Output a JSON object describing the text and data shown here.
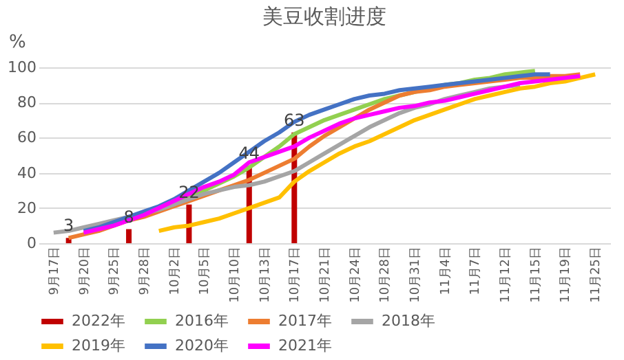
{
  "chart_data": {
    "type": "line",
    "title": "美豆收割进度",
    "ylabel": "%",
    "categories": [
      "9月17日",
      null,
      "9月20日",
      null,
      "9月25日",
      null,
      "9月28日",
      null,
      "10月2日",
      null,
      "10月5日",
      null,
      "10月10日",
      null,
      "10月13日",
      null,
      "10月17日",
      null,
      "10月21日",
      null,
      "10月24日",
      null,
      "10月28日",
      null,
      "10月31日",
      null,
      "11月4日",
      null,
      "11月7日",
      null,
      "11月12日",
      null,
      "11月15日",
      null,
      "11月19日",
      null,
      "11月25日"
    ],
    "series": [
      {
        "name": "2022年",
        "type": "bar",
        "color": "#c00000",
        "data_labels": true,
        "values": [
          null,
          3,
          null,
          null,
          null,
          8,
          null,
          null,
          null,
          22,
          null,
          null,
          null,
          44,
          null,
          null,
          63,
          null,
          null,
          null,
          null,
          null,
          null,
          null,
          null,
          null,
          null,
          null,
          null,
          null,
          null,
          null,
          null,
          null,
          null,
          null,
          null
        ]
      },
      {
        "name": "2016年",
        "color": "#92d050",
        "values": [
          null,
          null,
          null,
          null,
          null,
          null,
          null,
          null,
          22,
          26,
          30,
          34,
          38,
          43,
          49,
          55,
          62,
          66,
          70,
          73,
          76,
          79,
          82,
          84,
          86,
          88,
          90,
          91,
          93,
          94,
          96,
          97,
          98,
          null,
          null,
          null,
          null
        ]
      },
      {
        "name": "2017年",
        "color": "#ed7d31",
        "values": [
          null,
          3,
          5,
          7,
          10,
          13,
          15,
          18,
          21,
          24,
          27,
          30,
          33,
          36,
          40,
          44,
          48,
          55,
          61,
          66,
          71,
          76,
          80,
          84,
          86,
          87,
          89,
          90,
          91,
          92,
          93,
          94,
          94,
          95,
          95,
          96,
          null
        ]
      },
      {
        "name": "2018年",
        "color": "#a5a5a5",
        "values": [
          6,
          7,
          9,
          11,
          13,
          15,
          17,
          19,
          22,
          25,
          28,
          30,
          32,
          33,
          35,
          38,
          41,
          46,
          51,
          56,
          61,
          66,
          70,
          74,
          77,
          79,
          82,
          84,
          86,
          88,
          89,
          90,
          null,
          null,
          null,
          null,
          null
        ]
      },
      {
        "name": "2019年",
        "color": "#ffc000",
        "values": [
          null,
          null,
          null,
          null,
          null,
          null,
          null,
          7,
          9,
          10,
          12,
          14,
          17,
          20,
          23,
          26,
          35,
          41,
          46,
          51,
          55,
          58,
          62,
          66,
          70,
          73,
          76,
          79,
          82,
          84,
          86,
          88,
          89,
          91,
          92,
          94,
          96
        ]
      },
      {
        "name": "2020年",
        "color": "#4472c4",
        "values": [
          null,
          null,
          7,
          9,
          12,
          15,
          18,
          21,
          25,
          30,
          35,
          40,
          46,
          52,
          58,
          63,
          69,
          73,
          76,
          79,
          82,
          84,
          85,
          87,
          88,
          89,
          90,
          91,
          92,
          93,
          94,
          95,
          96,
          96,
          null,
          null,
          null
        ]
      },
      {
        "name": "2021年",
        "color": "#ff00ff",
        "values": [
          null,
          null,
          6,
          8,
          10,
          13,
          16,
          20,
          24,
          28,
          32,
          35,
          39,
          46,
          49,
          52,
          55,
          60,
          64,
          68,
          71,
          73,
          75,
          77,
          78,
          80,
          81,
          83,
          85,
          87,
          89,
          91,
          92,
          93,
          94,
          95,
          null
        ]
      }
    ],
    "ylim": [
      0,
      100
    ],
    "yticks": [
      0,
      20,
      40,
      60,
      80,
      100
    ],
    "grid": "y",
    "legend": "bottom"
  }
}
